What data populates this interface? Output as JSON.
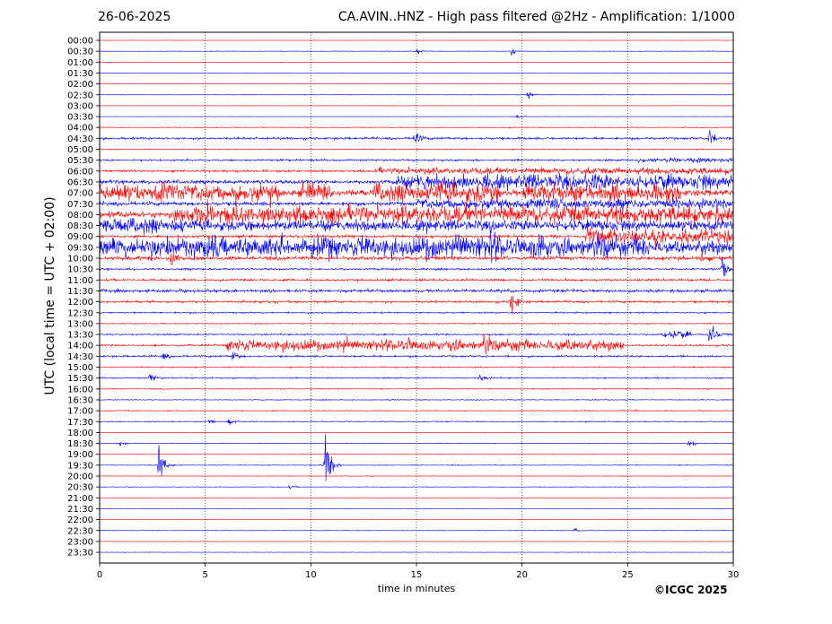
{
  "header": {
    "date": "26-06-2025",
    "title": "CA.AVIN..HNZ - High pass filtered @2Hz - Amplification: 1/1000"
  },
  "copyright": "©ICGC 2025",
  "chart_data": {
    "type": "helicorder",
    "title": "CA.AVIN..HNZ - High pass filtered @2Hz - Amplification: 1/1000",
    "date": "26-06-2025",
    "xlabel": "time in minutes",
    "ylabel": "UTC (local time = UTC + 02:00)",
    "xlim": [
      0,
      30
    ],
    "x_ticks": [
      0,
      5,
      10,
      15,
      20,
      25,
      30
    ],
    "grid": "vertical dotted lines at x ticks",
    "trace_colors": [
      "#ff0000",
      "#0000ff"
    ],
    "row_labels": [
      "00:00",
      "00:30",
      "01:00",
      "01:30",
      "02:00",
      "02:30",
      "03:00",
      "03:30",
      "04:00",
      "04:30",
      "05:00",
      "05:30",
      "06:00",
      "06:30",
      "07:00",
      "07:30",
      "08:00",
      "08:30",
      "09:00",
      "09:30",
      "10:00",
      "10:30",
      "11:00",
      "11:30",
      "12:00",
      "12:30",
      "13:00",
      "13:30",
      "14:00",
      "14:30",
      "15:00",
      "15:30",
      "16:00",
      "16:30",
      "17:00",
      "17:30",
      "18:00",
      "18:30",
      "19:00",
      "19:30",
      "20:00",
      "20:30",
      "21:00",
      "21:30",
      "22:00",
      "22:30",
      "23:00",
      "23:30"
    ],
    "baseline_noise": [
      0.2,
      0.3,
      0.2,
      0.2,
      0.2,
      0.3,
      0.2,
      0.2,
      0.5,
      1.2,
      0.6,
      1,
      1.2,
      2,
      3.5,
      2,
      3.5,
      3.5,
      1.5,
      4,
      2,
      1,
      1.2,
      1.5,
      1.2,
      0.8,
      0.6,
      0.8,
      1,
      1,
      0.7,
      0.7,
      0.5,
      0.5,
      0.5,
      0.5,
      0.3,
      0.4,
      0.3,
      0.4,
      0.3,
      0.3,
      0.2,
      0.2,
      0.2,
      0.3,
      0.2,
      0.2
    ],
    "activity_segments": [
      {
        "row": "05:30",
        "x": [
          25.5,
          30
        ],
        "amp": 2.5
      },
      {
        "row": "06:00",
        "x": [
          13,
          30
        ],
        "amp": 4
      },
      {
        "row": "06:30",
        "x": [
          14,
          30
        ],
        "amp": 10
      },
      {
        "row": "07:00",
        "x": [
          0,
          8.7
        ],
        "amp": 10
      },
      {
        "row": "07:00",
        "x": [
          9.5,
          11
        ],
        "amp": 9
      },
      {
        "row": "07:00",
        "x": [
          13,
          19
        ],
        "amp": 12
      },
      {
        "row": "07:00",
        "x": [
          20,
          27.5
        ],
        "amp": 10
      },
      {
        "row": "07:30",
        "x": [
          15,
          30
        ],
        "amp": 6
      },
      {
        "row": "08:00",
        "x": [
          3.5,
          30
        ],
        "amp": 10
      },
      {
        "row": "08:30",
        "x": [
          0,
          4
        ],
        "amp": 9
      },
      {
        "row": "08:30",
        "x": [
          4,
          30
        ],
        "amp": 4
      },
      {
        "row": "09:00",
        "x": [
          23,
          30
        ],
        "amp": 10
      },
      {
        "row": "09:30",
        "x": [
          0,
          26
        ],
        "amp": 12
      },
      {
        "row": "09:30",
        "x": [
          26,
          30
        ],
        "amp": 5
      },
      {
        "row": "14:00",
        "x": [
          6,
          24.8
        ],
        "amp": 8
      },
      {
        "row": "13:30",
        "x": [
          26.5,
          28
        ],
        "amp": 5
      }
    ],
    "events": [
      {
        "row": "00:30",
        "x": 15,
        "amp": 3
      },
      {
        "row": "00:30",
        "x": 19.5,
        "amp": 4
      },
      {
        "row": "02:30",
        "x": 20.3,
        "amp": 4
      },
      {
        "row": "03:30",
        "x": 19.8,
        "amp": 3
      },
      {
        "row": "04:30",
        "x": 14.9,
        "amp": 10
      },
      {
        "row": "04:30",
        "x": 28.9,
        "amp": 12
      },
      {
        "row": "09:30",
        "x": 17,
        "amp": 14
      },
      {
        "row": "09:30",
        "x": 18.5,
        "amp": 10
      },
      {
        "row": "10:00",
        "x": 3.4,
        "amp": 14
      },
      {
        "row": "10:00",
        "x": 28.5,
        "amp": 8
      },
      {
        "row": "10:30",
        "x": 29.5,
        "amp": 14
      },
      {
        "row": "12:00",
        "x": 19.5,
        "amp": 20
      },
      {
        "row": "13:30",
        "x": 28.9,
        "amp": 20
      },
      {
        "row": "14:00",
        "x": 18.2,
        "amp": 10
      },
      {
        "row": "14:30",
        "x": 3,
        "amp": 4
      },
      {
        "row": "14:30",
        "x": 6.3,
        "amp": 6
      },
      {
        "row": "15:30",
        "x": 2.4,
        "amp": 6
      },
      {
        "row": "15:30",
        "x": 18,
        "amp": 5
      },
      {
        "row": "17:30",
        "x": 5.2,
        "amp": 4
      },
      {
        "row": "17:30",
        "x": 6.1,
        "amp": 5
      },
      {
        "row": "18:30",
        "x": 1,
        "amp": 3
      },
      {
        "row": "18:30",
        "x": 27.9,
        "amp": 5
      },
      {
        "row": "19:30",
        "x": 2.8,
        "amp": 24
      },
      {
        "row": "19:30",
        "x": 10.7,
        "amp": 38
      },
      {
        "row": "20:30",
        "x": 9,
        "amp": 2
      },
      {
        "row": "22:30",
        "x": 22.5,
        "amp": 2
      }
    ]
  }
}
